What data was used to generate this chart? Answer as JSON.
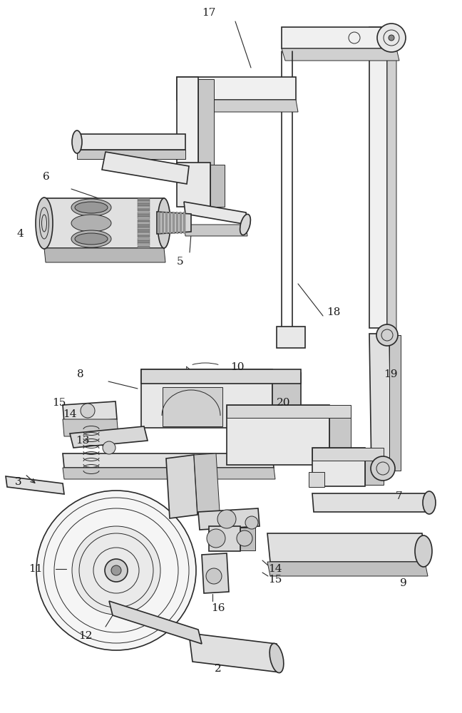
{
  "background_color": "#ffffff",
  "line_color": "#2a2a2a",
  "label_color": "#1a1a1a",
  "fig_width": 6.48,
  "fig_height": 10.0
}
